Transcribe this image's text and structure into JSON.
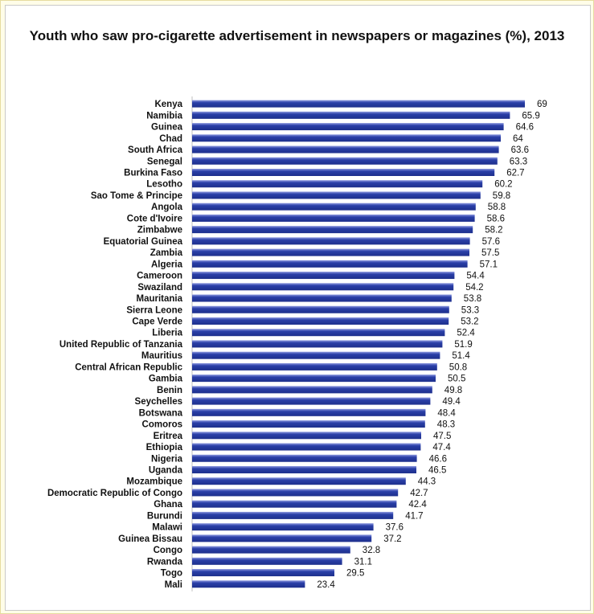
{
  "chart_data": {
    "type": "bar",
    "orientation": "horizontal",
    "title": "Youth who saw pro-cigarette advertisement in newspapers or magazines (%), 2013",
    "xlabel": "",
    "ylabel": "",
    "xlim": [
      0,
      69
    ],
    "grid": false,
    "legend": "none",
    "bar_color": "#2a3fa8",
    "bar_highlight": "#8e9ae0",
    "categories": [
      "Kenya",
      "Namibia",
      "Guinea",
      "Chad",
      "South Africa",
      "Senegal",
      "Burkina Faso",
      "Lesotho",
      "Sao Tome & Principe",
      "Angola",
      "Cote d'Ivoire",
      "Zimbabwe",
      "Equatorial Guinea",
      "Zambia",
      "Algeria",
      "Cameroon",
      "Swaziland",
      "Mauritania",
      "Sierra Leone",
      "Cape Verde",
      "Liberia",
      "United Republic of Tanzania",
      "Mauritius",
      "Central African Republic",
      "Gambia",
      "Benin",
      "Seychelles",
      "Botswana",
      "Comoros",
      "Eritrea",
      "Ethiopia",
      "Nigeria",
      "Uganda",
      "Mozambique",
      "Democratic Republic of Congo",
      "Ghana",
      "Burundi",
      "Malawi",
      "Guinea Bissau",
      "Congo",
      "Rwanda",
      "Togo",
      "Mali"
    ],
    "values": [
      69,
      65.9,
      64.6,
      64,
      63.6,
      63.3,
      62.7,
      60.2,
      59.8,
      58.8,
      58.6,
      58.2,
      57.6,
      57.5,
      57.1,
      54.4,
      54.2,
      53.8,
      53.3,
      53.2,
      52.4,
      51.9,
      51.4,
      50.8,
      50.5,
      49.8,
      49.4,
      48.4,
      48.3,
      47.5,
      47.4,
      46.6,
      46.5,
      44.3,
      42.7,
      42.4,
      41.7,
      37.6,
      37.2,
      32.8,
      31.1,
      29.5,
      23.4
    ],
    "value_labels": [
      "69",
      "65.9",
      "64.6",
      "64",
      "63.6",
      "63.3",
      "62.7",
      "60.2",
      "59.8",
      "58.8",
      "58.6",
      "58.2",
      "57.6",
      "57.5",
      "57.1",
      "54.4",
      "54.2",
      "53.8",
      "53.3",
      "53.2",
      "52.4",
      "51.9",
      "51.4",
      "50.8",
      "50.5",
      "49.8",
      "49.4",
      "48.4",
      "48.3",
      "47.5",
      "47.4",
      "46.6",
      "46.5",
      "44.3",
      "42.7",
      "42.4",
      "41.7",
      "37.6",
      "37.2",
      "32.8",
      "31.1",
      "29.5",
      "23.4"
    ]
  }
}
